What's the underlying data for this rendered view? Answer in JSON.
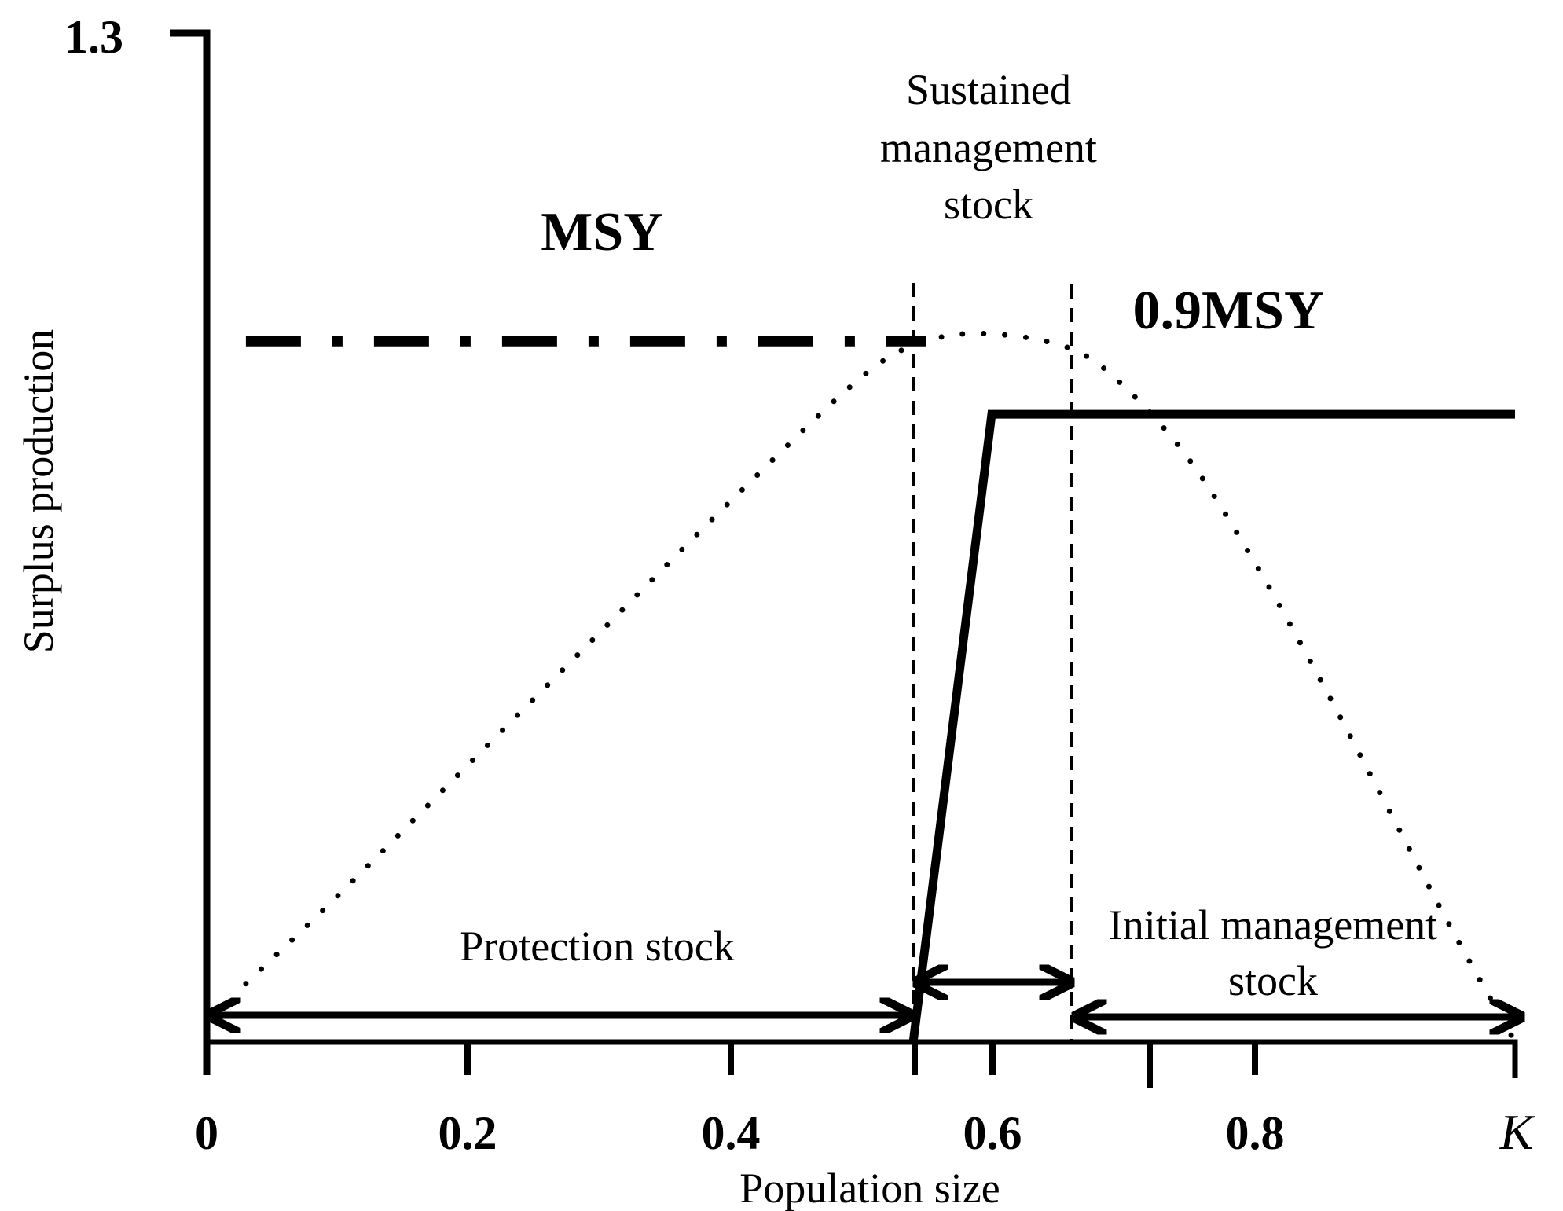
{
  "chart_data": {
    "type": "line",
    "x_label": "Population size",
    "y_label": "Surplus production",
    "y_top_tick": "1.3",
    "x_ticks": [
      "0",
      "0.2",
      "0.4",
      "0.6",
      "0.8",
      "K"
    ],
    "xlim": [
      0,
      1
    ],
    "series": [
      {
        "name": "MSY",
        "style": "dash-dot",
        "x": [
          0.03,
          0.55
        ],
        "y": [
          0.96,
          0.96
        ]
      },
      {
        "style": "dotted",
        "x": [
          0.03,
          0.1,
          0.2,
          0.3,
          0.4,
          0.5,
          0.55,
          0.6,
          0.66,
          0.7,
          0.75,
          0.8,
          0.85,
          0.9,
          0.95,
          1.0
        ],
        "y": [
          0.08,
          0.2,
          0.38,
          0.56,
          0.74,
          0.91,
          0.96,
          0.97,
          0.95,
          0.9,
          0.8,
          0.66,
          0.5,
          0.33,
          0.16,
          0.0
        ]
      },
      {
        "name": "0.9MSY",
        "style": "solid",
        "x": [
          0.54,
          0.6,
          1.0
        ],
        "y": [
          0.0,
          0.86,
          0.86
        ]
      }
    ],
    "reference_lines_x": [
      0.54,
      0.66
    ]
  },
  "labels": {
    "msy": "MSY",
    "msy09": "0.9MSY",
    "sustained": [
      "Sustained",
      "management",
      "stock"
    ],
    "protection": "Protection stock",
    "initial": [
      "Initial management",
      "stock"
    ]
  }
}
